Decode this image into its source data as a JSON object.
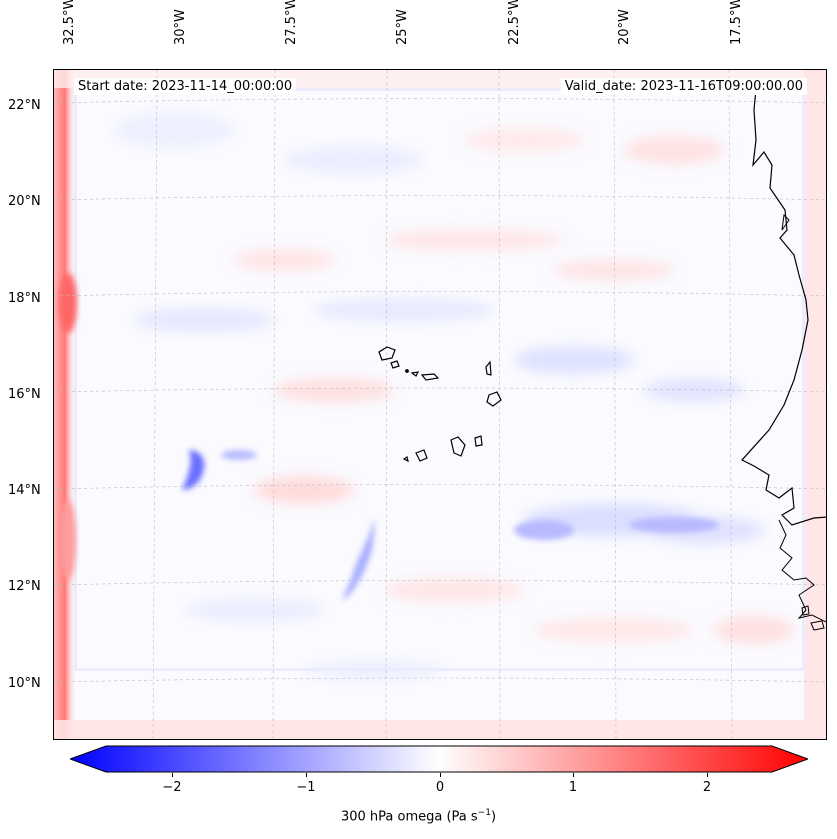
{
  "map": {
    "lon_labels": [
      "32.5°W",
      "30°W",
      "27.5°W",
      "25°W",
      "22.5°W",
      "20°W",
      "17.5°W"
    ],
    "lat_labels": [
      "22°N",
      "20°N",
      "18°N",
      "16°N",
      "14°N",
      "12°N",
      "10°N"
    ],
    "start_date": "Start date: 2023-11-14_00:00:00",
    "valid_date": "Valid_date: 2023-11-16T09:00:00.00"
  },
  "colorbar": {
    "ticks": [
      "−2",
      "−1",
      "0",
      "1",
      "2"
    ],
    "label_main": "300 hPa omega (Pa s",
    "label_exp": "−1",
    "label_end": ")",
    "min_color": "#0000ff",
    "mid_color": "#ffffff",
    "max_color": "#ff0000"
  }
}
